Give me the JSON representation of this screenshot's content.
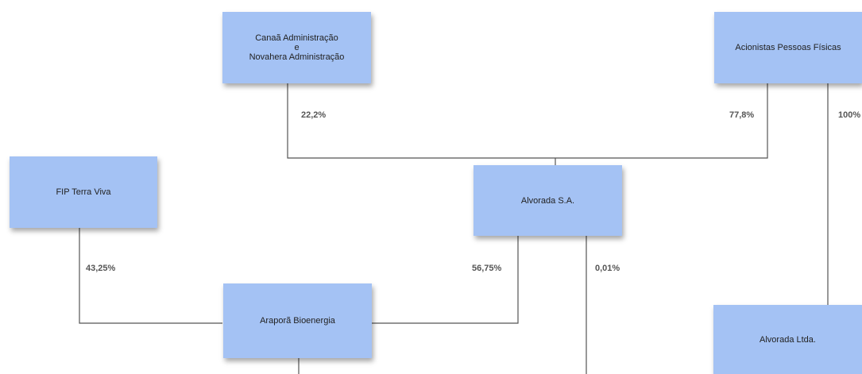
{
  "colors": {
    "box_fill": "#a4c2f4",
    "line": "#555555",
    "label": "#555555"
  },
  "entities": {
    "canaa": "Canaã Administração\ne\nNovahera Administração",
    "acionistas": "Acionistas Pessoas Físicas",
    "fip": "FIP Terra Viva",
    "alvorada_sa": "Alvorada S.A.",
    "arapora": "Araporã Bioenergia",
    "alvorada_ltda": "Alvorada Ltda."
  },
  "ownership": {
    "canaa_to_alvorada_sa": "22,2%",
    "acionistas_to_alvorada_sa": "77,8%",
    "acionistas_to_alvorada_ltda": "100%",
    "fip_to_arapora": "43,25%",
    "alvorada_sa_to_arapora": "56,75%",
    "alvorada_sa_down": "0,01%"
  }
}
